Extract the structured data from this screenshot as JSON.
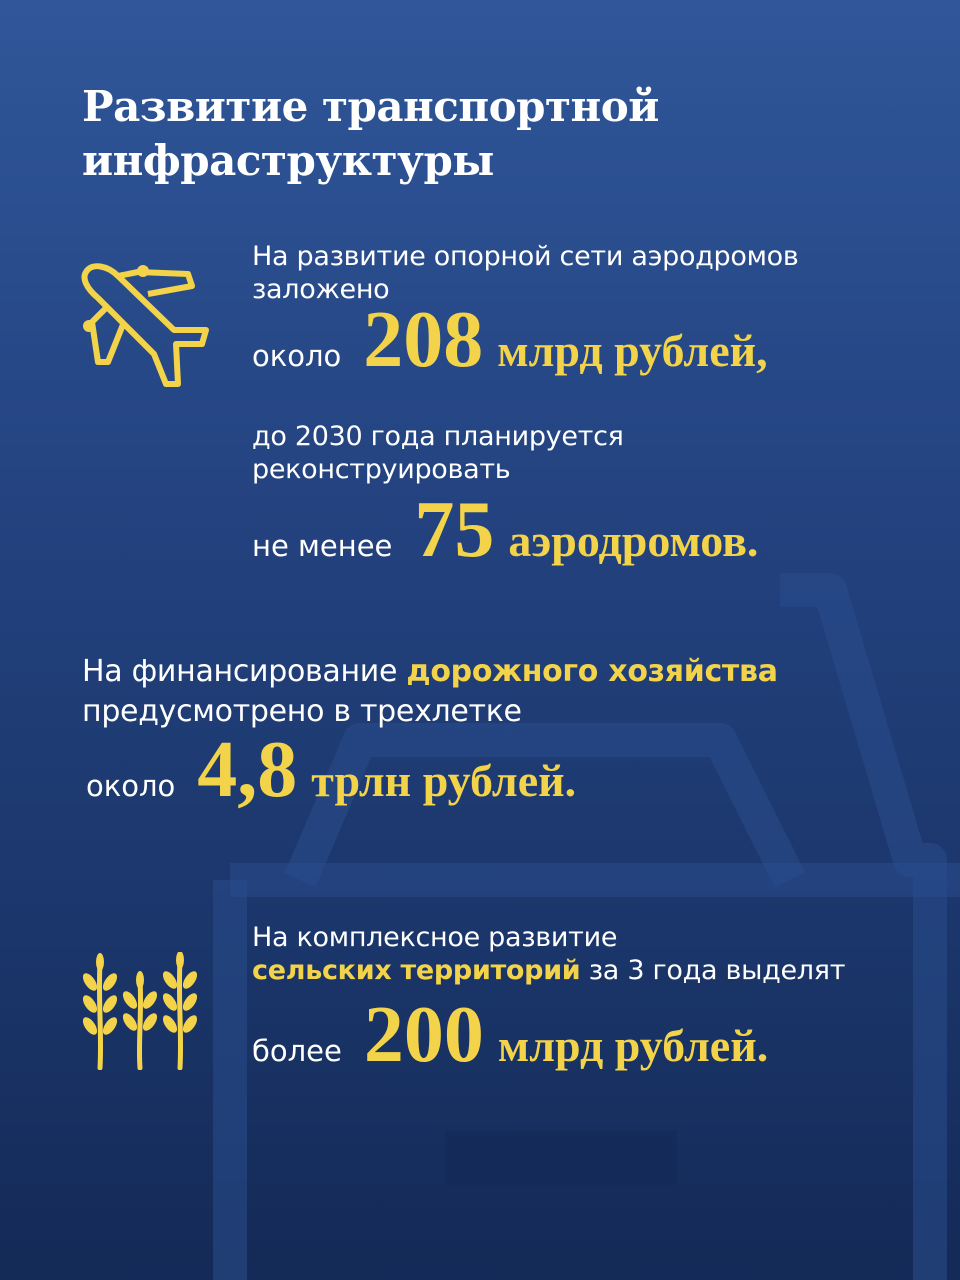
{
  "title": {
    "line1": "Развитие транспортной",
    "line2": "инфраструктуры"
  },
  "colors": {
    "accent": "#f3d349",
    "background_top": "#30579a",
    "background_bottom": "#142a57"
  },
  "airports": {
    "icon": "airplane-icon",
    "line1": "На развитие опорной сети аэродромов",
    "line2": "заложено",
    "amount_lead": "около",
    "amount_value": "208",
    "amount_unit": "млрд рублей,",
    "line3": "до 2030 года планируется",
    "line4": "реконструировать",
    "count_lead": "не менее",
    "count_value": "75",
    "count_unit": "аэродромов."
  },
  "roads": {
    "line1_prefix": "На финансирование",
    "line1_highlight": "дорожного хозяйства",
    "line2": "предусмотрено в трехлетке",
    "amount_lead": "около",
    "amount_value": "4,8",
    "amount_unit": "трлн рублей."
  },
  "rural": {
    "icon": "wheat-icon",
    "line1": "На комплексное развитие",
    "line2_highlight": "сельских территорий",
    "line2_suffix": "за 3 года выделят",
    "amount_lead": "более",
    "amount_value": "200",
    "amount_unit": "млрд рублей."
  }
}
